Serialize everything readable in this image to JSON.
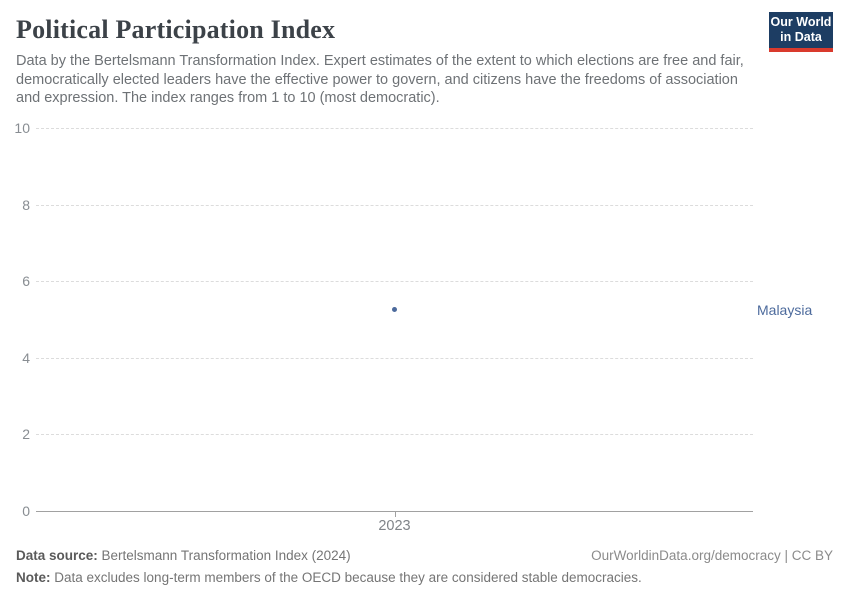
{
  "header": {
    "title": "Political Participation Index",
    "subtitle": "Data by the Bertelsmann Transformation Index. Expert estimates of the extent to which elections are free and fair, democratically elected leaders have the effective power to govern, and citizens have the freedoms of association and expression. The index ranges from 1 to 10 (most democratic).",
    "logo": {
      "line1": "Our World",
      "line2": "in Data",
      "bg_color": "#1d3d63",
      "bar_color": "#d93a2d"
    }
  },
  "chart_data": {
    "type": "scatter",
    "title": "Political Participation Index",
    "x": [
      2023
    ],
    "xticks": [
      "2023"
    ],
    "series": [
      {
        "name": "Malaysia",
        "values": [
          5.25
        ],
        "color": "#4C6A9C"
      }
    ],
    "xlabel": "",
    "ylabel": "",
    "ylim": [
      0,
      10
    ],
    "yticks": [
      0,
      2,
      4,
      6,
      8,
      10
    ],
    "grid": "horizontal dashed, solid baseline at 0",
    "legend_position": "entity label right of plot"
  },
  "footer": {
    "source_label": "Data source:",
    "source_text": " Bertelsmann Transformation Index (2024)",
    "note_label": "Note:",
    "note_text": " Data excludes long-term members of the OECD because they are considered stable democracies.",
    "rights": "OurWorldinData.org/democracy | CC BY"
  }
}
